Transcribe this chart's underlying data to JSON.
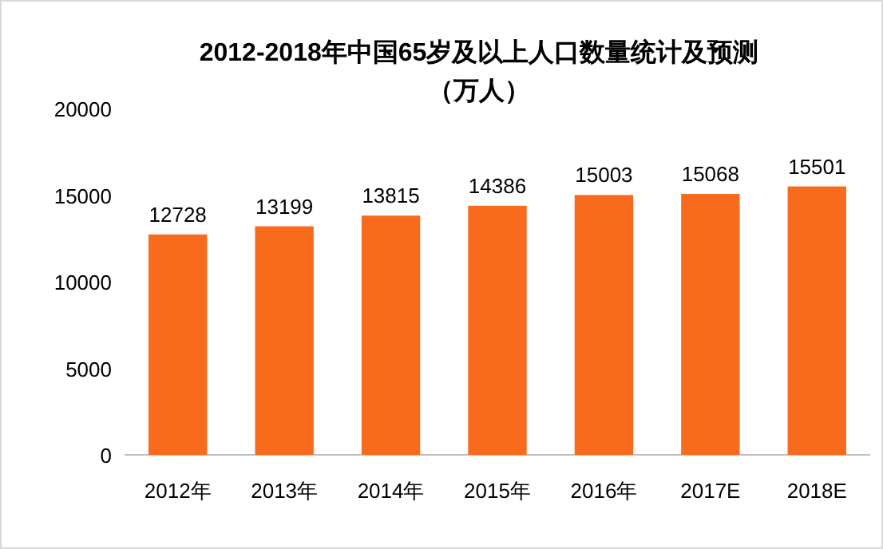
{
  "chart_data": {
    "type": "bar",
    "title": "2012-2018年中国65岁及以上人口数量统计及预测",
    "subtitle": "（万人）",
    "categories": [
      "2012年",
      "2013年",
      "2014年",
      "2015年",
      "2016年",
      "2017E",
      "2018E"
    ],
    "values": [
      12728,
      13199,
      13815,
      14386,
      15003,
      15068,
      15501
    ],
    "color": "#f96b1c",
    "ylim": [
      0,
      20000
    ],
    "yticks": [
      0,
      5000,
      10000,
      15000,
      20000
    ],
    "data_labels": true
  }
}
